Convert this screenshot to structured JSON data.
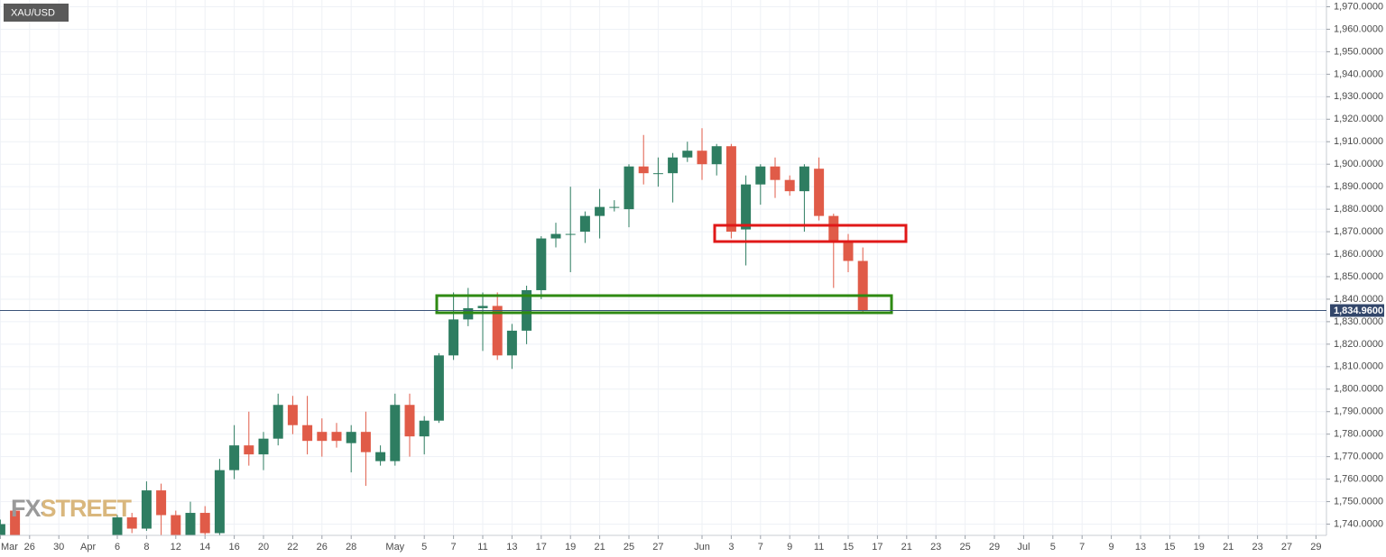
{
  "chart_data": {
    "type": "candlestick",
    "symbol": "XAU/USD",
    "watermark": "FXSTREET",
    "up_color": "#2e7d61",
    "down_color": "#e05b48",
    "grid": true,
    "ylim": [
      1735,
      1973
    ],
    "yticks": [
      {
        "value": 1740,
        "label": "1,740.0000"
      },
      {
        "value": 1750,
        "label": "1,750.0000"
      },
      {
        "value": 1760,
        "label": "1,760.0000"
      },
      {
        "value": 1770,
        "label": "1,770.0000"
      },
      {
        "value": 1780,
        "label": "1,780.0000"
      },
      {
        "value": 1790,
        "label": "1,790.0000"
      },
      {
        "value": 1800,
        "label": "1,800.0000"
      },
      {
        "value": 1810,
        "label": "1,810.0000"
      },
      {
        "value": 1820,
        "label": "1,820.0000"
      },
      {
        "value": 1830,
        "label": "1,830.0000"
      },
      {
        "value": 1840,
        "label": "1,840.0000"
      },
      {
        "value": 1850,
        "label": "1,850.0000"
      },
      {
        "value": 1860,
        "label": "1,860.0000"
      },
      {
        "value": 1870,
        "label": "1,870.0000"
      },
      {
        "value": 1880,
        "label": "1,880.0000"
      },
      {
        "value": 1890,
        "label": "1,890.0000"
      },
      {
        "value": 1900,
        "label": "1,900.0000"
      },
      {
        "value": 1910,
        "label": "1,910.0000"
      },
      {
        "value": 1920,
        "label": "1,920.0000"
      },
      {
        "value": 1930,
        "label": "1,930.0000"
      },
      {
        "value": 1940,
        "label": "1,940.0000"
      },
      {
        "value": 1950,
        "label": "1,950.0000"
      },
      {
        "value": 1960,
        "label": "1,960.0000"
      },
      {
        "value": 1970,
        "label": "1,970.0000"
      }
    ],
    "last_price": {
      "value": 1834.96,
      "label": "1,834.9600"
    },
    "categories": [
      "Mar",
      null,
      "26",
      null,
      "30",
      null,
      "Apr",
      null,
      "6",
      null,
      "8",
      null,
      "12",
      null,
      "14",
      null,
      "16",
      null,
      "20",
      null,
      "22",
      null,
      "26",
      null,
      "28",
      null,
      null,
      "May",
      null,
      "5",
      null,
      "7",
      null,
      "11",
      null,
      "13",
      null,
      "17",
      null,
      "19",
      null,
      "21",
      null,
      "25",
      null,
      "27",
      null,
      null,
      "Jun",
      null,
      "3",
      null,
      "7",
      null,
      "9",
      null,
      "11",
      null,
      "15",
      null,
      "17",
      null,
      "21",
      null,
      "23",
      null,
      "25",
      null,
      "29",
      null,
      "Jul",
      null,
      "5",
      null,
      "7",
      null,
      "9",
      null,
      "13",
      null,
      "15",
      null,
      "19",
      null,
      "21",
      null,
      "23",
      null,
      "27",
      null,
      "29"
    ],
    "open": [
      1733,
      1746,
      null,
      null,
      null,
      null,
      null,
      null,
      1728,
      1743,
      1738,
      1755,
      1744,
      1733,
      1745,
      1736,
      1764,
      1775,
      1771,
      1778,
      1793,
      1784,
      1781,
      1781,
      1776,
      1781,
      1768,
      1768,
      1793,
      1779,
      1786,
      1815,
      1831,
      1836,
      1837,
      1815,
      1826,
      1844,
      1867,
      1869,
      1870,
      1877,
      1881,
      1880,
      1899,
      1896,
      1896,
      1903,
      1906,
      1900,
      1908,
      1871,
      1891,
      1899,
      1893,
      1888,
      1898,
      1877,
      1866,
      1857,
      null,
      null,
      null,
      null,
      null,
      null,
      null,
      null,
      null,
      null,
      null,
      null,
      null,
      null,
      null,
      null,
      null,
      null,
      null,
      null,
      null,
      null,
      null,
      null,
      null,
      null,
      null,
      null,
      null,
      null,
      null
    ],
    "high": [
      1742,
      1748,
      null,
      null,
      null,
      null,
      null,
      null,
      1744,
      1745,
      1759,
      1758,
      1746,
      1750,
      1748,
      1769,
      1784,
      1790,
      1781,
      1798,
      1797,
      1797,
      1787,
      1785,
      1784,
      1790,
      1775,
      1798,
      1798,
      1788,
      1816,
      1843,
      1845,
      1843,
      1843,
      1829,
      1846,
      1868,
      1874,
      1890,
      1879,
      1889,
      1884,
      1900,
      1913,
      1903,
      1905,
      1910,
      1916,
      1909,
      1909,
      1895,
      1900,
      1903,
      1895,
      1900,
      1903,
      1878,
      1869,
      1863,
      null,
      null,
      null,
      null,
      null,
      null,
      null,
      null,
      null,
      null,
      null,
      null,
      null,
      null,
      null,
      null,
      null,
      null,
      null,
      null,
      null,
      null,
      null,
      null,
      null,
      null,
      null,
      null,
      null,
      null,
      null
    ],
    "low": [
      1731,
      1728,
      null,
      null,
      null,
      null,
      null,
      null,
      1726,
      1736,
      1737,
      1732,
      1729,
      1730,
      1734,
      1734,
      1760,
      1766,
      1764,
      1775,
      1780,
      1771,
      1770,
      1774,
      1763,
      1757,
      1766,
      1766,
      1770,
      1771,
      1785,
      1813,
      1828,
      1817,
      1813,
      1809,
      1820,
      1840,
      1863,
      1852,
      1865,
      1867,
      1879,
      1872,
      1891,
      1890,
      1883,
      1901,
      1893,
      1895,
      1867,
      1855,
      1882,
      1885,
      1886,
      1870,
      1875,
      1845,
      1852,
      1834,
      null,
      null,
      null,
      null,
      null,
      null,
      null,
      null,
      null,
      null,
      null,
      null,
      null,
      null,
      null,
      null,
      null,
      null,
      null,
      null,
      null,
      null,
      null,
      null,
      null,
      null,
      null,
      null,
      null,
      null,
      null
    ],
    "close": [
      1740,
      1732,
      null,
      null,
      null,
      null,
      null,
      null,
      1743,
      1738,
      1755,
      1744,
      1733,
      1745,
      1736,
      1764,
      1775,
      1771,
      1778,
      1793,
      1784,
      1777,
      1777,
      1777,
      1781,
      1772,
      1772,
      1793,
      1779,
      1786,
      1815,
      1831,
      1836,
      1837,
      1815,
      1826,
      1844,
      1867,
      1869,
      1869,
      1877,
      1881,
      1881,
      1899,
      1896,
      1896,
      1903,
      1906,
      1900,
      1908,
      1870,
      1891,
      1899,
      1893,
      1888,
      1899,
      1877,
      1866,
      1857,
      1834.96,
      null,
      null,
      null,
      null,
      null,
      null,
      null,
      null,
      null,
      null,
      null,
      null,
      null,
      null,
      null,
      null,
      null,
      null,
      null,
      null,
      null,
      null,
      null,
      null,
      null,
      null,
      null,
      null,
      null,
      null,
      null
    ]
  }
}
